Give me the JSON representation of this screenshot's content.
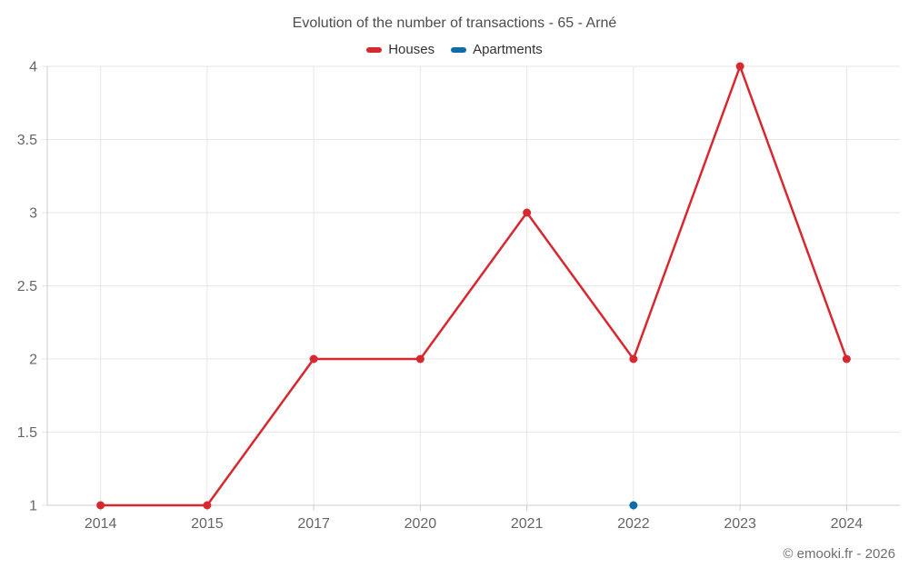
{
  "title": "Evolution of the number of transactions - 65 - Arné",
  "footer": "© emooki.fr - 2026",
  "colors": {
    "houses": "#d7282f",
    "apartments": "#106ba8",
    "grid": "#e6e6e6",
    "axis": "#cccccc",
    "tick_label": "#666666",
    "title_text": "#4d4d4d"
  },
  "chart_data": {
    "type": "line",
    "title": "Evolution of the number of transactions - 65 - Arné",
    "categories": [
      "2014",
      "2015",
      "2017",
      "2020",
      "2021",
      "2022",
      "2023",
      "2024"
    ],
    "series": [
      {
        "name": "Houses",
        "color": "#d7282f",
        "values": [
          1,
          1,
          2,
          2,
          3,
          2,
          4,
          2
        ]
      },
      {
        "name": "Apartments",
        "color": "#106ba8",
        "values": [
          null,
          null,
          null,
          null,
          null,
          1,
          null,
          null
        ]
      }
    ],
    "xlabel": "",
    "ylabel": "",
    "ylim": [
      1,
      4
    ],
    "yticks": [
      1,
      1.5,
      2,
      2.5,
      3,
      3.5,
      4
    ],
    "grid": true,
    "legend_position": "top"
  }
}
